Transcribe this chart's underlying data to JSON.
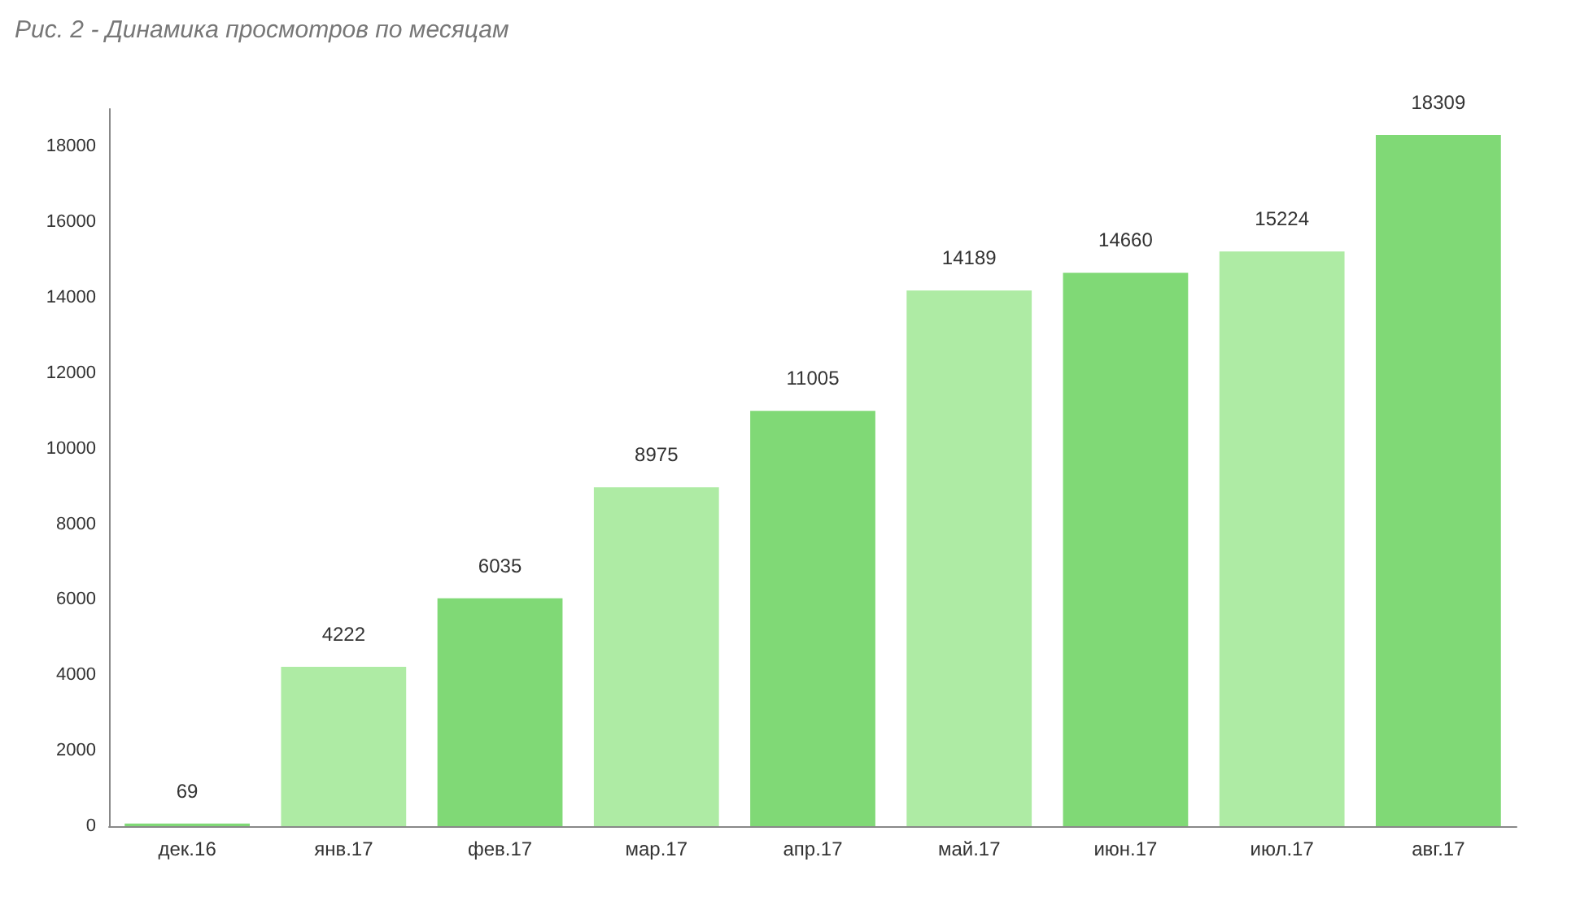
{
  "chart_data": {
    "type": "bar",
    "title": "Рис. 2 - Динамика просмотров по месяцам",
    "categories": [
      "дек.16",
      "янв.17",
      "фев.17",
      "мар.17",
      "апр.17",
      "май.17",
      "июн.17",
      "июл.17",
      "авг.17"
    ],
    "values": [
      69,
      4222,
      6035,
      8975,
      11005,
      14189,
      14660,
      15224,
      18309
    ],
    "colors": [
      "#80d976",
      "#aeeba4",
      "#80d976",
      "#aeeba4",
      "#80d976",
      "#aeeba4",
      "#80d976",
      "#aeeba4",
      "#80d976"
    ],
    "ylim": [
      0,
      19000
    ],
    "yticks": [
      0,
      2000,
      4000,
      6000,
      8000,
      10000,
      12000,
      14000,
      16000,
      18000
    ],
    "grid": false,
    "data_labels": true
  }
}
